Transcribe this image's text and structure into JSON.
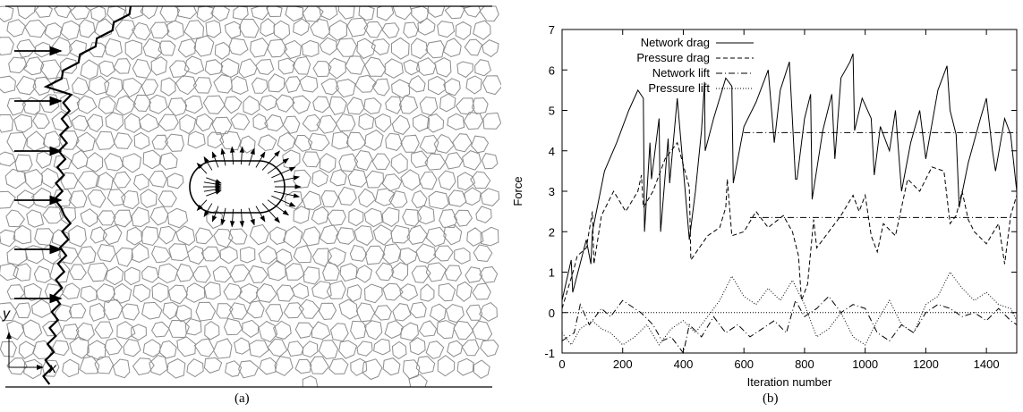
{
  "captions": {
    "panel_a": "(a)",
    "panel_b": "(b)"
  },
  "panel_a": {
    "axis_x_label": "x",
    "axis_y_label": "y",
    "description_colors": {
      "mesh": "#8c8c8c",
      "front": "#000000",
      "arrows": "#000000"
    }
  },
  "chart_data": {
    "type": "line",
    "title": "",
    "xlabel": "Iteration number",
    "ylabel": "Force",
    "xlim": [
      0,
      1500
    ],
    "ylim": [
      -1,
      7
    ],
    "xticks": [
      0,
      200,
      400,
      600,
      800,
      1000,
      1200,
      1400
    ],
    "yticks": [
      -1,
      0,
      1,
      2,
      3,
      4,
      5,
      6,
      7
    ],
    "grid": false,
    "legend_position": "top-left",
    "series": [
      {
        "name": "Network drag",
        "dash": "solid",
        "x": [
          0,
          30,
          35,
          80,
          95,
          100,
          140,
          180,
          220,
          250,
          268,
          272,
          290,
          295,
          320,
          325,
          350,
          355,
          380,
          420,
          440,
          460,
          470,
          472,
          500,
          540,
          560,
          565,
          600,
          640,
          680,
          700,
          720,
          750,
          770,
          775,
          800,
          820,
          825,
          860,
          890,
          900,
          920,
          950,
          960,
          965,
          990,
          1020,
          1030,
          1050,
          1080,
          1100,
          1120,
          1150,
          1180,
          1200,
          1240,
          1270,
          1280,
          1300,
          1310,
          1340,
          1380,
          1400,
          1420,
          1430,
          1460,
          1480,
          1500
        ],
        "y": [
          0.3,
          1.3,
          0.5,
          1.8,
          1.2,
          2.0,
          3.5,
          4.2,
          5.0,
          5.5,
          5.3,
          2.0,
          4.2,
          3.3,
          4.8,
          2.0,
          4.3,
          3.2,
          5.3,
          1.8,
          3.0,
          4.5,
          5.7,
          4.0,
          4.8,
          5.8,
          5.6,
          3.2,
          4.6,
          5.2,
          6.0,
          4.2,
          5.5,
          6.2,
          3.3,
          3.3,
          4.8,
          5.4,
          2.8,
          4.5,
          5.4,
          3.8,
          5.8,
          6.2,
          6.4,
          4.5,
          5.3,
          4.8,
          3.4,
          4.6,
          4.0,
          5.0,
          3.0,
          4.2,
          5.0,
          3.8,
          5.5,
          6.1,
          5.0,
          4.4,
          2.6,
          3.7,
          4.8,
          5.3,
          4.0,
          3.5,
          4.8,
          4.4,
          3.0
        ]
      },
      {
        "name": "Pressure drag",
        "dash": "dashed",
        "x": [
          0,
          40,
          50,
          80,
          100,
          105,
          130,
          170,
          210,
          250,
          262,
          268,
          300,
          340,
          380,
          420,
          425,
          480,
          520,
          540,
          545,
          560,
          600,
          640,
          680,
          730,
          760,
          780,
          790,
          810,
          830,
          840,
          880,
          920,
          960,
          980,
          1000,
          1020,
          1040,
          1060,
          1100,
          1140,
          1180,
          1220,
          1260,
          1280,
          1300,
          1320,
          1340,
          1360,
          1400,
          1440,
          1460,
          1480,
          1500
        ],
        "y": [
          0.1,
          1.1,
          1.4,
          1.6,
          2.5,
          1.2,
          2.4,
          3.0,
          2.5,
          3.0,
          3.4,
          2.6,
          3.0,
          3.8,
          4.2,
          3.1,
          1.3,
          1.9,
          2.1,
          2.6,
          3.3,
          1.9,
          2.0,
          2.5,
          2.1,
          2.4,
          2.0,
          1.4,
          0.3,
          0.7,
          2.3,
          1.6,
          2.0,
          2.4,
          2.9,
          2.5,
          2.9,
          1.9,
          1.5,
          2.2,
          1.9,
          3.3,
          3.0,
          3.6,
          3.5,
          2.2,
          2.4,
          3.0,
          2.3,
          2.0,
          1.7,
          2.2,
          1.2,
          2.4,
          2.9
        ]
      },
      {
        "name": "Network lift",
        "dash": "dashdot",
        "x": [
          0,
          40,
          60,
          90,
          130,
          160,
          200,
          260,
          300,
          330,
          360,
          400,
          420,
          460,
          500,
          540,
          580,
          620,
          660,
          700,
          740,
          770,
          800,
          840,
          880,
          920,
          960,
          1000,
          1040,
          1080,
          1120,
          1160,
          1200,
          1240,
          1280,
          1320,
          1360,
          1400,
          1440,
          1480,
          1500
        ],
        "y": [
          -0.7,
          -0.5,
          0.2,
          -0.3,
          0.1,
          -0.1,
          0.3,
          0.0,
          -0.3,
          -0.7,
          -0.6,
          -1.0,
          -0.3,
          -0.6,
          -0.1,
          -0.5,
          -0.3,
          -0.6,
          -0.4,
          -0.2,
          -0.5,
          0.3,
          -0.1,
          0.1,
          0.4,
          0.0,
          0.2,
          0.1,
          -0.5,
          -0.7,
          -0.3,
          -0.5,
          0.0,
          0.2,
          0.1,
          -0.1,
          0.0,
          -0.2,
          0.1,
          -0.2,
          -0.3
        ]
      },
      {
        "name": "Pressure lift",
        "dash": "dotted",
        "x": [
          0,
          30,
          60,
          100,
          130,
          160,
          200,
          240,
          280,
          320,
          360,
          400,
          440,
          480,
          520,
          560,
          600,
          640,
          680,
          720,
          760,
          800,
          840,
          880,
          920,
          960,
          1000,
          1040,
          1080,
          1120,
          1160,
          1200,
          1240,
          1280,
          1320,
          1360,
          1400,
          1440,
          1480,
          1500
        ],
        "y": [
          -0.5,
          -0.8,
          -0.4,
          -0.2,
          -0.4,
          -0.5,
          -0.8,
          -0.6,
          -0.3,
          -0.8,
          -0.4,
          -0.2,
          -0.5,
          -0.1,
          0.3,
          0.9,
          0.4,
          0.2,
          0.6,
          0.3,
          0.8,
          0.2,
          -0.6,
          -0.4,
          0.0,
          -0.6,
          -0.8,
          -0.2,
          0.3,
          -0.3,
          -0.5,
          0.2,
          0.4,
          1.0,
          0.6,
          0.3,
          0.5,
          0.2,
          0.1,
          -0.2
        ]
      }
    ],
    "reference_lines": [
      {
        "dash": "dashdot",
        "y": 4.45,
        "x_range": [
          600,
          1500
        ]
      },
      {
        "dash": "dashdot",
        "y": 2.35,
        "x_range": [
          620,
          1500
        ]
      },
      {
        "dash": "dotted",
        "y": 0.0,
        "x_range": [
          0,
          1500
        ]
      }
    ]
  }
}
